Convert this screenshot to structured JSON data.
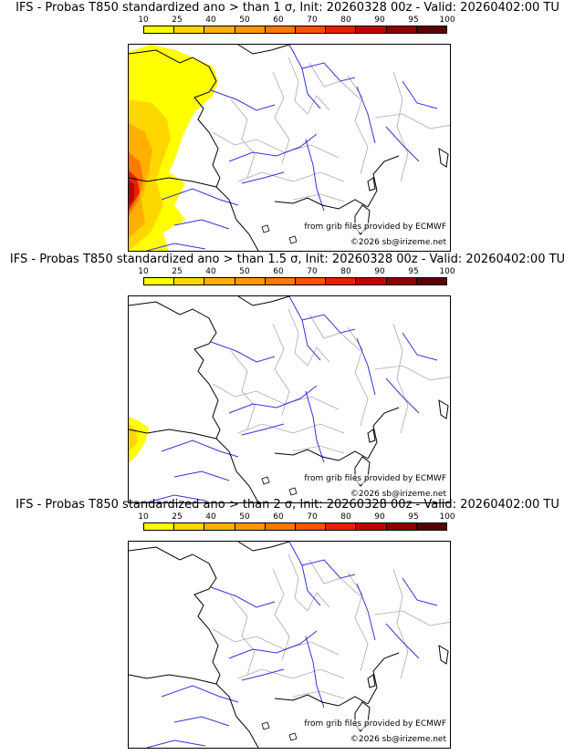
{
  "legend": {
    "labels": [
      "10",
      "25",
      "40",
      "50",
      "60",
      "70",
      "80",
      "90",
      "95",
      "100"
    ],
    "colors": [
      "#ffff00",
      "#ffd700",
      "#ffb000",
      "#ff9800",
      "#ff7800",
      "#ff5000",
      "#e62000",
      "#c00000",
      "#8c0000",
      "#5a0000"
    ]
  },
  "panels": [
    {
      "title": "IFS - Probas T850  standardized ano > than 1 σ, Init: 20260328 00z - Valid: 20260402:00 TU",
      "credit_source": "from grib files provided by ECMWF",
      "credit_copyright": "©2026 sb@irizeme.net"
    },
    {
      "title": "IFS - Probas T850  standardized ano > than 1.5 σ, Init: 20260328 00z - Valid: 20260402:00 TU",
      "credit_source": "from grib files provided by ECMWF",
      "credit_copyright": "©2026 sb@irizeme.net"
    },
    {
      "title": "IFS - Probas T850  standardized ano > than 2 σ, Init: 20260328 00z - Valid: 20260402:00 TU",
      "credit_source": "from grib files provided by ECMWF",
      "credit_copyright": "©2026 sb@irizeme.net"
    }
  ],
  "map_colors": {
    "coast": "#000000",
    "rivers": "#3333dd",
    "borders": "#aaaaaa"
  }
}
